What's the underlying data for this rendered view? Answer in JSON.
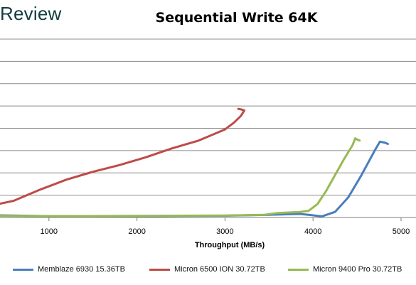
{
  "header": {
    "logo_text": "Review"
  },
  "chart_data": {
    "type": "line",
    "title": "Sequential Write 64K",
    "xlabel": "Throughput (MB/s)",
    "ylabel": "",
    "xlim": [
      0,
      5000
    ],
    "ylim": [
      0,
      8
    ],
    "xticks": [
      "1000",
      "2000",
      "3000",
      "4000",
      "5000"
    ],
    "xtick_values": [
      1000,
      2000,
      3000,
      4000,
      5000
    ],
    "gridlines_y": [
      1,
      2,
      3,
      4,
      5,
      6,
      7,
      8
    ],
    "grid": true,
    "legend_position": "bottom",
    "series": [
      {
        "name": "Memblaze 6930 15.36TB",
        "color": "#4a7ebb",
        "points": [
          [
            0,
            0.12
          ],
          [
            1000,
            0.06
          ],
          [
            2000,
            0.06
          ],
          [
            3000,
            0.08
          ],
          [
            3500,
            0.12
          ],
          [
            3850,
            0.16
          ],
          [
            3950,
            0.12
          ],
          [
            4100,
            0.05
          ],
          [
            4250,
            0.25
          ],
          [
            4400,
            0.9
          ],
          [
            4550,
            1.9
          ],
          [
            4700,
            3.0
          ],
          [
            4760,
            3.4
          ],
          [
            4820,
            3.35
          ],
          [
            4850,
            3.3
          ]
        ]
      },
      {
        "name": "Micron 6500 ION 30.72TB",
        "color": "#be4b48",
        "points": [
          [
            0,
            0.45
          ],
          [
            200,
            0.5
          ],
          [
            400,
            0.58
          ],
          [
            600,
            0.75
          ],
          [
            900,
            1.25
          ],
          [
            1200,
            1.7
          ],
          [
            1500,
            2.05
          ],
          [
            1800,
            2.35
          ],
          [
            2100,
            2.7
          ],
          [
            2400,
            3.1
          ],
          [
            2700,
            3.45
          ],
          [
            3000,
            3.95
          ],
          [
            3100,
            4.25
          ],
          [
            3180,
            4.55
          ],
          [
            3220,
            4.8
          ],
          [
            3180,
            4.85
          ],
          [
            3150,
            4.87
          ]
        ]
      },
      {
        "name": "Micron 9400 Pro 30.72TB",
        "color": "#98b954",
        "points": [
          [
            0,
            0.09
          ],
          [
            1000,
            0.06
          ],
          [
            2000,
            0.07
          ],
          [
            3000,
            0.09
          ],
          [
            3450,
            0.12
          ],
          [
            3600,
            0.2
          ],
          [
            3850,
            0.25
          ],
          [
            3950,
            0.3
          ],
          [
            4050,
            0.6
          ],
          [
            4150,
            1.2
          ],
          [
            4250,
            1.9
          ],
          [
            4350,
            2.6
          ],
          [
            4450,
            3.25
          ],
          [
            4480,
            3.55
          ],
          [
            4500,
            3.5
          ],
          [
            4530,
            3.45
          ]
        ]
      }
    ]
  }
}
